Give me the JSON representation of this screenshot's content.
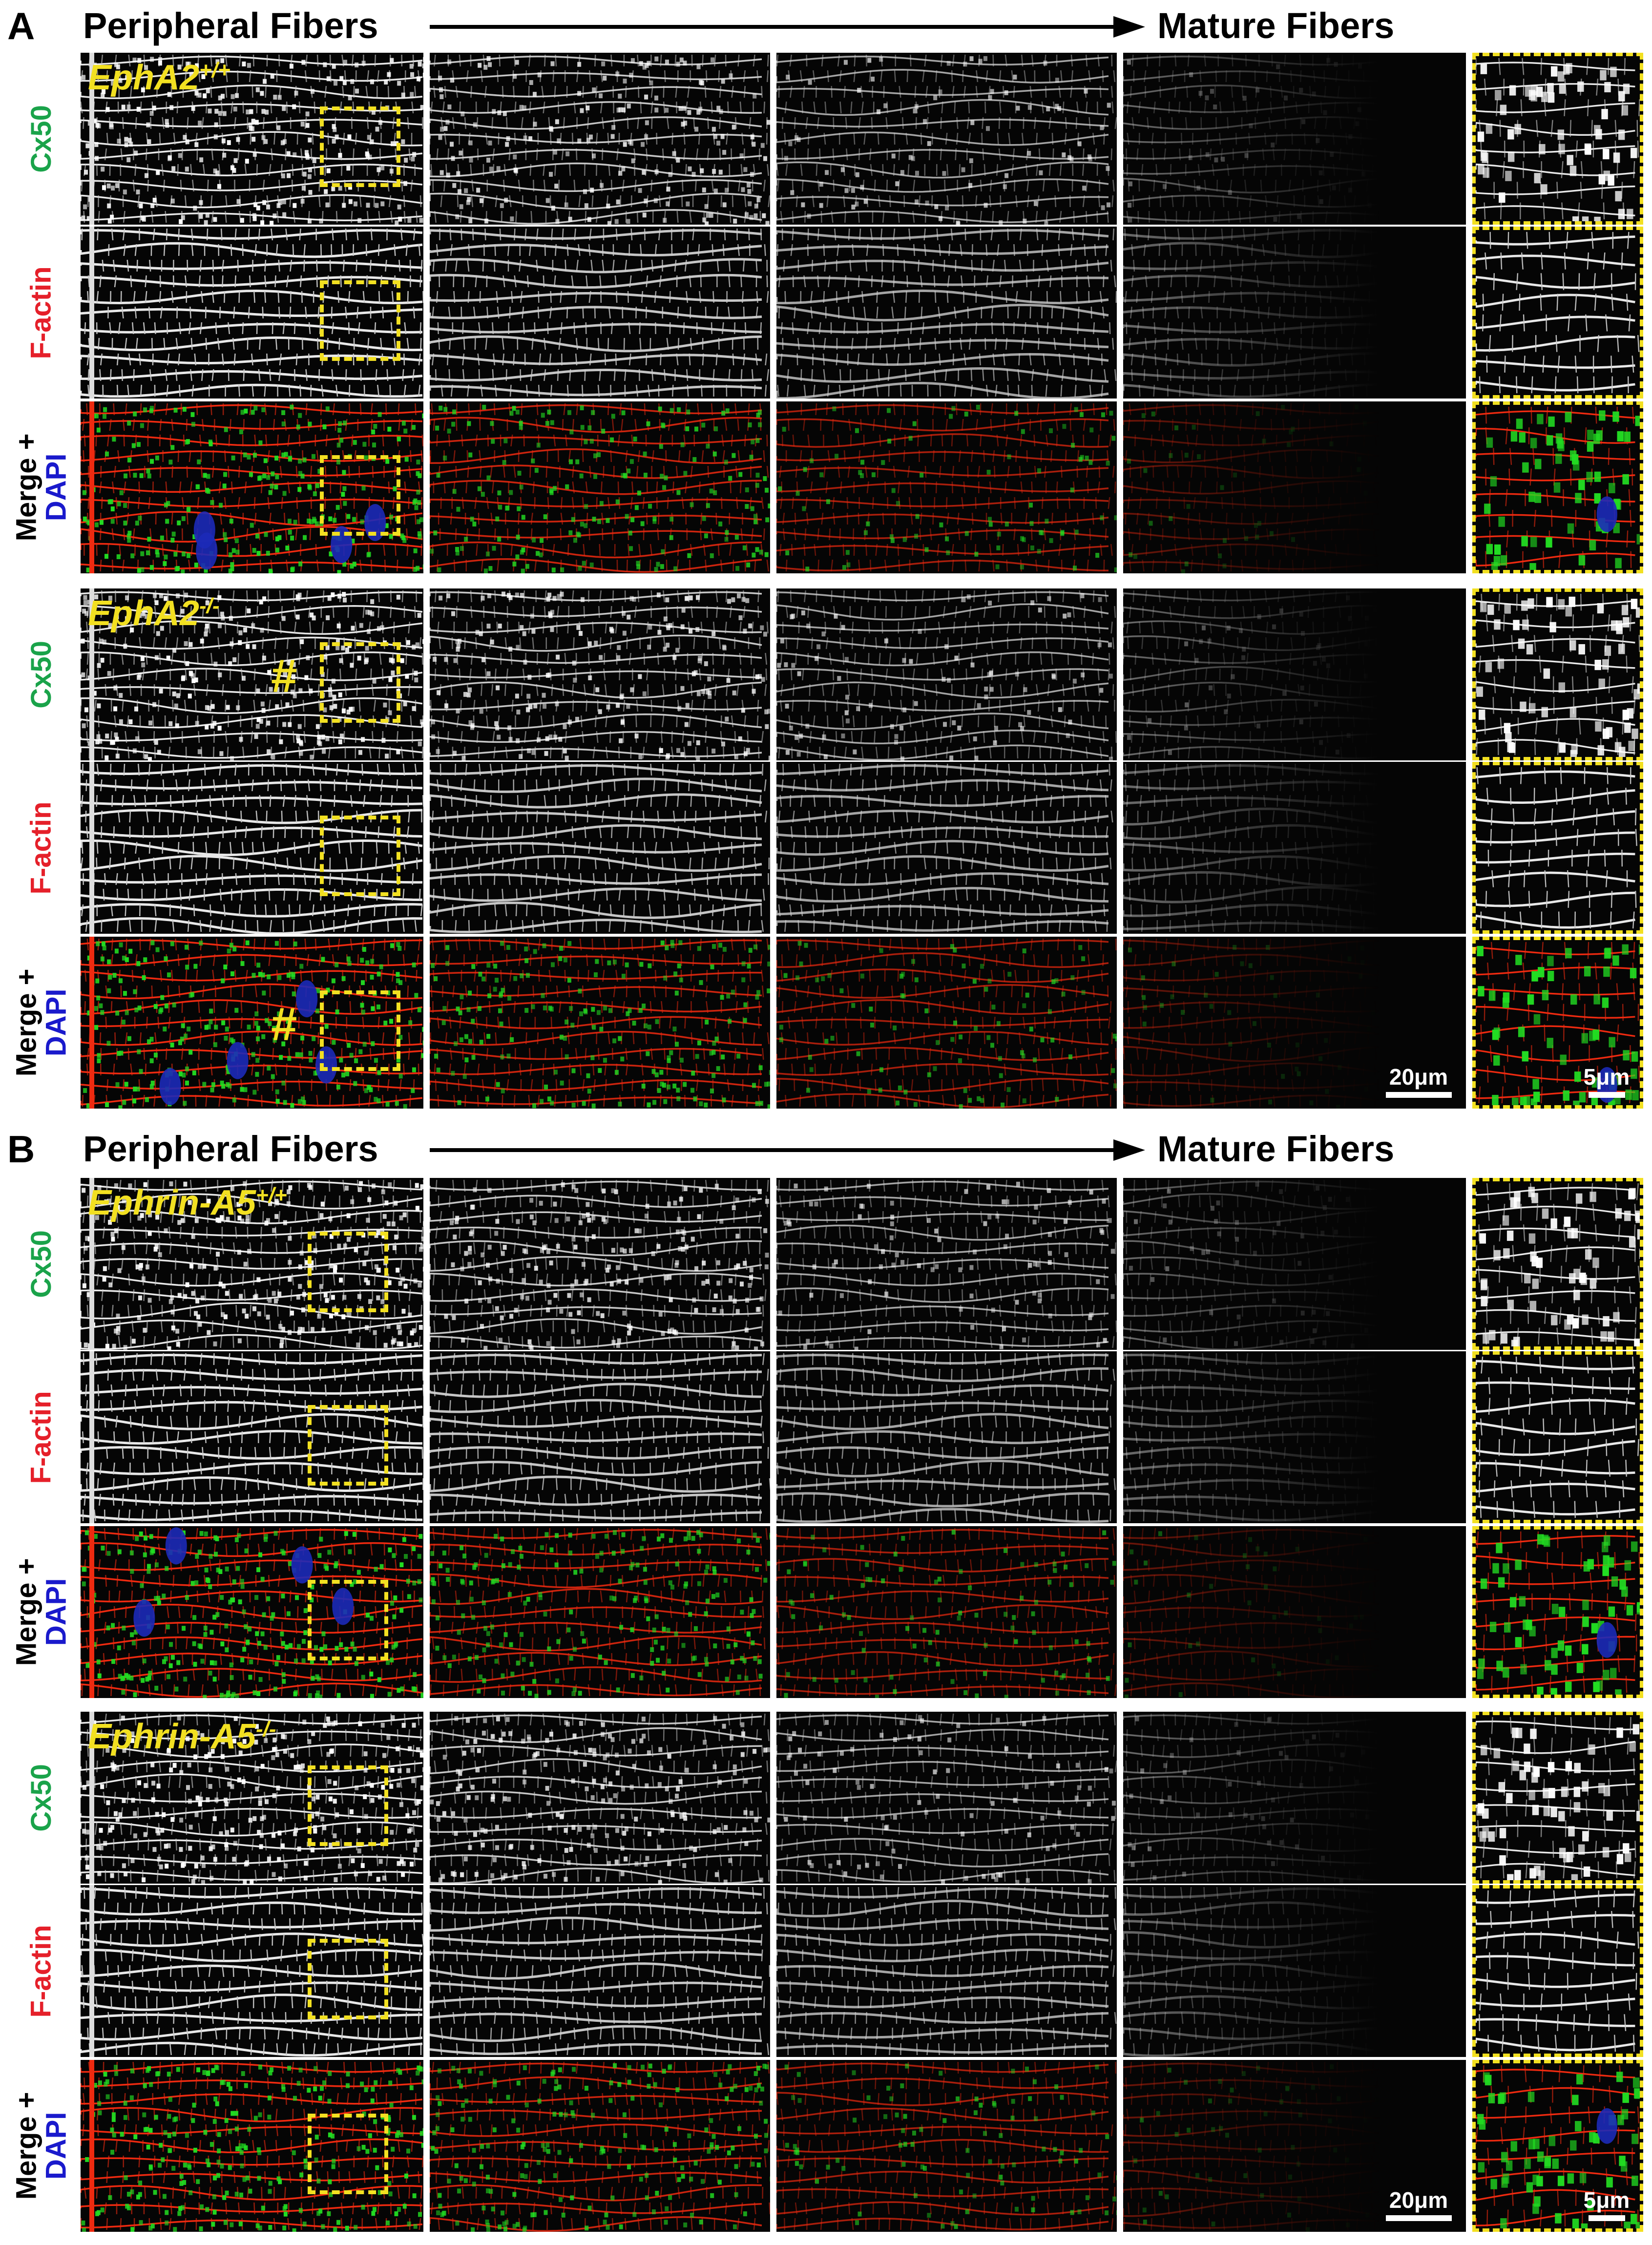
{
  "figure": {
    "panels": [
      {
        "letter": "A",
        "left_label": "Peripheral Fibers",
        "right_label": "Mature Fibers",
        "genotypes": [
          {
            "name": "EphA2",
            "sup": "+/+",
            "rows": [
              {
                "key": "cx50",
                "label_lines": [
                  {
                    "text": "Cx50",
                    "color": "green"
                  }
                ]
              },
              {
                "key": "factin",
                "label_lines": [
                  {
                    "text": "F-actin",
                    "color": "red"
                  }
                ]
              },
              {
                "key": "merge",
                "label_lines": [
                  {
                    "text": "Merge +",
                    "color": "black"
                  },
                  {
                    "text": "DAPI",
                    "color": "blue"
                  }
                ]
              }
            ],
            "hash_marks": []
          },
          {
            "name": "EphA2",
            "sup": "-/-",
            "rows": [
              {
                "key": "cx50",
                "label_lines": [
                  {
                    "text": "Cx50",
                    "color": "green"
                  }
                ]
              },
              {
                "key": "factin",
                "label_lines": [
                  {
                    "text": "F-actin",
                    "color": "red"
                  }
                ]
              },
              {
                "key": "merge",
                "label_lines": [
                  {
                    "text": "Merge +",
                    "color": "black"
                  },
                  {
                    "text": "DAPI",
                    "color": "blue"
                  }
                ]
              }
            ],
            "hash_marks": [
              "#",
              "#"
            ]
          }
        ],
        "scale_bars": [
          "20μm",
          "5μm"
        ]
      },
      {
        "letter": "B",
        "left_label": "Peripheral Fibers",
        "right_label": "Mature Fibers",
        "genotypes": [
          {
            "name": "Ephrin-A5",
            "sup": "+/+",
            "rows": [
              {
                "key": "cx50",
                "label_lines": [
                  {
                    "text": "Cx50",
                    "color": "green"
                  }
                ]
              },
              {
                "key": "factin",
                "label_lines": [
                  {
                    "text": "F-actin",
                    "color": "red"
                  }
                ]
              },
              {
                "key": "merge",
                "label_lines": [
                  {
                    "text": "Merge +",
                    "color": "black"
                  },
                  {
                    "text": "DAPI",
                    "color": "blue"
                  }
                ]
              }
            ],
            "hash_marks": []
          },
          {
            "name": "Ephrin-A5",
            "sup": "-/-",
            "rows": [
              {
                "key": "cx50",
                "label_lines": [
                  {
                    "text": "Cx50",
                    "color": "green"
                  }
                ]
              },
              {
                "key": "factin",
                "label_lines": [
                  {
                    "text": "F-actin",
                    "color": "red"
                  }
                ]
              },
              {
                "key": "merge",
                "label_lines": [
                  {
                    "text": "Merge +",
                    "color": "black"
                  },
                  {
                    "text": "DAPI",
                    "color": "blue"
                  }
                ]
              }
            ],
            "hash_marks": []
          }
        ],
        "scale_bars": [
          "20μm",
          "5μm"
        ]
      }
    ],
    "colors": {
      "label_green": "#1aa34a",
      "label_red": "#e5202a",
      "label_blue": "#1a1acc",
      "annotation_yellow": "#f2e021",
      "channel_green": "#22dd22",
      "channel_red": "#ee2a10",
      "channel_blue": "#1c2ab8"
    }
  }
}
